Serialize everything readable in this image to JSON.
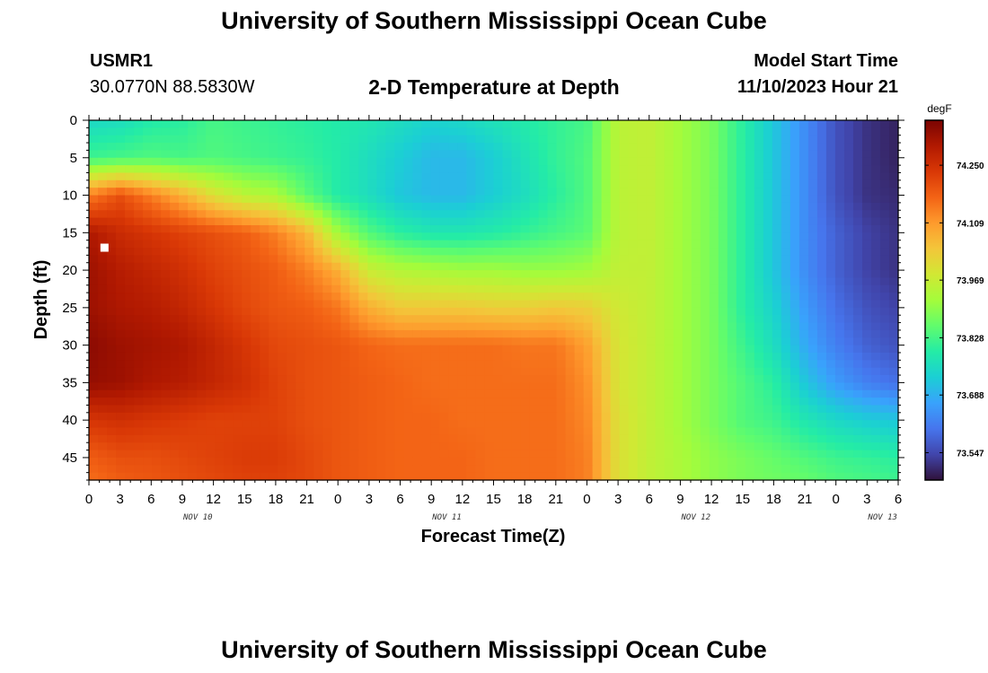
{
  "header": {
    "main_title": "University of Southern Mississippi Ocean Cube",
    "station": "USMR1",
    "coords": "30.0770N  88.5830W",
    "plot_title": "2-D Temperature at Depth",
    "model_start_label": "Model Start Time",
    "model_start_value": "11/10/2023 Hour 21",
    "footer_title": "University of Southern Mississippi Ocean Cube"
  },
  "colors": {
    "colormap": [
      "#30123b",
      "#4145ab",
      "#4675ed",
      "#39a2fc",
      "#1bcfd4",
      "#24eca6",
      "#61fc6c",
      "#a4fc3b",
      "#d1e834",
      "#f3c63a",
      "#fe9b2d",
      "#f36315",
      "#d93806",
      "#b11901",
      "#7a0402"
    ]
  },
  "chart_data": {
    "type": "heatmap",
    "title": "2-D Temperature at Depth",
    "xlabel": "Forecast Time(Z)",
    "ylabel": "Depth (ft)",
    "x_tick_labels": [
      "0",
      "3",
      "6",
      "9",
      "12",
      "15",
      "18",
      "21",
      "0",
      "3",
      "6",
      "9",
      "12",
      "15",
      "18",
      "21",
      "0",
      "3",
      "6",
      "9",
      "12",
      "15",
      "18",
      "21",
      "0",
      "3",
      "6"
    ],
    "date_labels": [
      {
        "text": "NOV 10",
        "hours_from_start": 10.5
      },
      {
        "text": "NOV 11",
        "hours_from_start": 34.5
      },
      {
        "text": "NOV 12",
        "hours_from_start": 58.5
      },
      {
        "text": "NOV 13",
        "hours_from_start": 76.5
      }
    ],
    "x_range_hours": [
      0,
      78
    ],
    "y_ticks": [
      0,
      5,
      10,
      15,
      20,
      25,
      30,
      35,
      40,
      45
    ],
    "ylim": [
      0,
      48
    ],
    "y_inverted": true,
    "colorbar": {
      "unit": "degF",
      "ticks": [
        74.25,
        74.109,
        73.969,
        73.828,
        73.688,
        73.547
      ],
      "tick_labels": [
        "74.250",
        "74.109",
        "73.969",
        "73.828",
        "73.688",
        "73.547"
      ],
      "range": [
        73.48,
        74.36
      ]
    },
    "temperature_grid": {
      "x_hours": [
        0,
        3,
        6,
        9,
        12,
        15,
        18,
        21,
        24,
        27,
        30,
        33,
        36,
        39,
        42,
        45,
        48,
        51,
        54,
        57,
        60,
        63,
        66,
        69,
        72,
        75,
        78
      ],
      "y_depths": [
        0,
        5,
        10,
        15,
        20,
        25,
        30,
        35,
        40,
        45,
        48
      ],
      "values": [
        [
          73.75,
          73.76,
          73.79,
          73.8,
          73.83,
          73.82,
          73.81,
          73.8,
          73.79,
          73.78,
          73.76,
          73.74,
          73.75,
          73.77,
          73.79,
          73.81,
          73.83,
          73.95,
          73.96,
          73.92,
          73.88,
          73.8,
          73.72,
          73.64,
          73.56,
          73.52,
          73.5
        ],
        [
          73.82,
          73.83,
          73.84,
          73.83,
          73.84,
          73.83,
          73.82,
          73.81,
          73.79,
          73.76,
          73.73,
          73.7,
          73.7,
          73.73,
          73.77,
          73.81,
          73.84,
          73.95,
          73.96,
          73.92,
          73.88,
          73.8,
          73.72,
          73.64,
          73.56,
          73.52,
          73.5
        ],
        [
          74.14,
          74.2,
          74.14,
          74.08,
          74.0,
          73.95,
          73.93,
          73.85,
          73.79,
          73.76,
          73.72,
          73.7,
          73.7,
          73.73,
          73.76,
          73.8,
          73.84,
          73.95,
          73.96,
          73.92,
          73.88,
          73.8,
          73.72,
          73.64,
          73.56,
          73.52,
          73.51
        ],
        [
          74.3,
          74.26,
          74.24,
          74.22,
          74.2,
          74.18,
          74.14,
          74.07,
          73.92,
          73.84,
          73.8,
          73.78,
          73.78,
          73.79,
          73.81,
          73.83,
          73.85,
          73.95,
          73.96,
          73.92,
          73.88,
          73.8,
          73.72,
          73.64,
          73.58,
          73.54,
          73.52
        ],
        [
          74.32,
          74.29,
          74.27,
          74.25,
          74.22,
          74.2,
          74.18,
          74.14,
          74.08,
          73.97,
          73.94,
          73.93,
          73.92,
          73.92,
          73.91,
          73.91,
          73.92,
          73.96,
          73.96,
          73.92,
          73.88,
          73.8,
          73.72,
          73.64,
          73.58,
          73.54,
          73.52
        ],
        [
          74.32,
          74.3,
          74.29,
          74.27,
          74.24,
          74.21,
          74.19,
          74.18,
          74.15,
          74.08,
          74.04,
          74.04,
          74.04,
          74.03,
          74.03,
          74.04,
          74.03,
          73.98,
          73.96,
          73.92,
          73.88,
          73.8,
          73.74,
          73.66,
          73.6,
          73.56,
          73.54
        ],
        [
          74.34,
          74.32,
          74.31,
          74.3,
          74.27,
          74.24,
          74.21,
          74.2,
          74.19,
          74.17,
          74.16,
          74.16,
          74.16,
          74.16,
          74.15,
          74.15,
          74.1,
          73.99,
          73.96,
          73.92,
          73.88,
          73.82,
          73.76,
          73.68,
          73.62,
          73.58,
          73.56
        ],
        [
          74.33,
          74.32,
          74.3,
          74.29,
          74.27,
          74.25,
          74.22,
          74.2,
          74.19,
          74.18,
          74.17,
          74.16,
          74.16,
          74.16,
          74.16,
          74.16,
          74.12,
          73.99,
          73.96,
          73.92,
          73.88,
          73.84,
          73.8,
          73.72,
          73.66,
          73.62,
          73.6
        ],
        [
          74.24,
          74.25,
          74.24,
          74.23,
          74.22,
          74.22,
          74.22,
          74.2,
          74.19,
          74.18,
          74.17,
          74.17,
          74.16,
          74.16,
          74.16,
          74.16,
          74.13,
          74.0,
          73.96,
          73.92,
          73.88,
          73.84,
          73.82,
          73.78,
          73.75,
          73.73,
          73.72
        ],
        [
          74.18,
          74.2,
          74.2,
          74.21,
          74.22,
          74.23,
          74.23,
          74.21,
          74.19,
          74.18,
          74.17,
          74.17,
          74.17,
          74.16,
          74.16,
          74.16,
          74.14,
          74.0,
          73.96,
          73.93,
          73.9,
          73.88,
          73.86,
          73.84,
          73.82,
          73.81,
          73.8
        ],
        [
          74.16,
          74.18,
          74.19,
          74.2,
          74.21,
          74.22,
          74.22,
          74.21,
          74.19,
          74.18,
          74.17,
          74.17,
          74.17,
          74.16,
          74.16,
          74.16,
          74.14,
          74.0,
          73.96,
          73.93,
          73.9,
          73.88,
          73.87,
          73.86,
          73.84,
          73.83,
          73.82
        ]
      ]
    },
    "marker": {
      "hours": 1.5,
      "depth": 17
    }
  }
}
